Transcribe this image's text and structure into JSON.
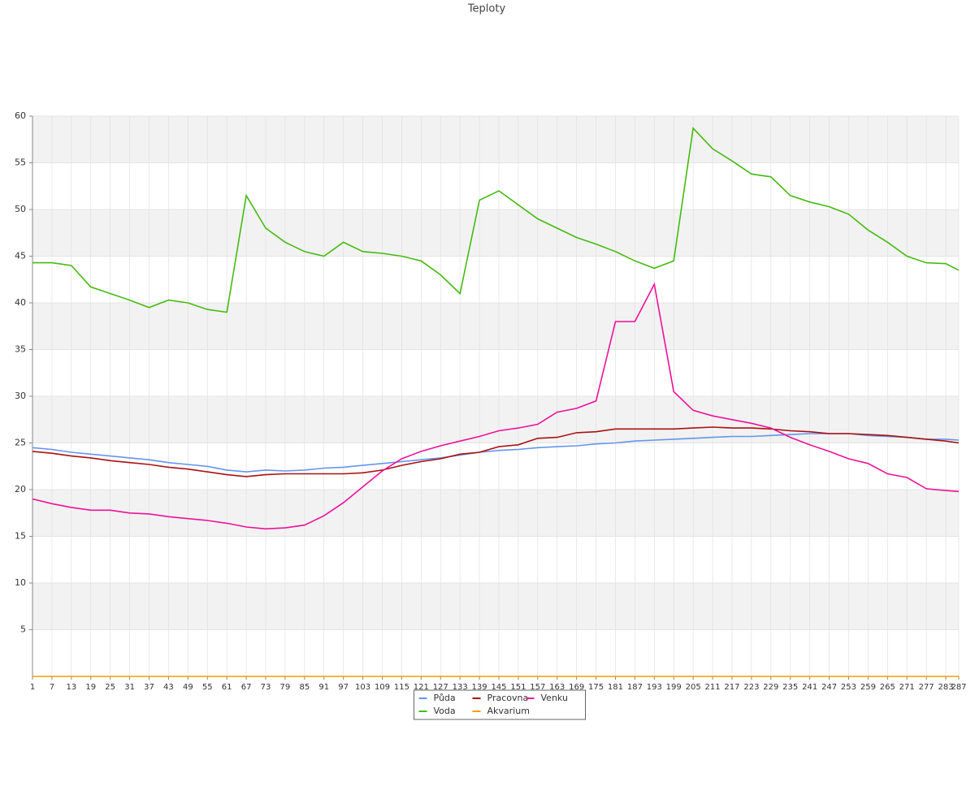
{
  "chart_data": {
    "type": "line",
    "title": "Teploty",
    "x": [
      1,
      7,
      13,
      19,
      25,
      31,
      37,
      43,
      49,
      55,
      61,
      67,
      73,
      79,
      85,
      91,
      97,
      103,
      109,
      115,
      121,
      127,
      133,
      139,
      145,
      151,
      157,
      163,
      169,
      175,
      181,
      187,
      193,
      199,
      205,
      211,
      217,
      223,
      229,
      235,
      241,
      247,
      253,
      259,
      265,
      271,
      277,
      283,
      287
    ],
    "xlim": [
      1,
      287
    ],
    "xticks": [
      1,
      7,
      13,
      19,
      25,
      31,
      37,
      43,
      49,
      55,
      61,
      67,
      73,
      79,
      85,
      91,
      97,
      103,
      109,
      115,
      121,
      127,
      133,
      139,
      145,
      151,
      157,
      163,
      169,
      175,
      181,
      187,
      193,
      199,
      205,
      211,
      217,
      223,
      229,
      235,
      241,
      247,
      253,
      259,
      265,
      271,
      277,
      283,
      287
    ],
    "ylim": [
      0,
      60
    ],
    "yticks": [
      5,
      10,
      15,
      20,
      25,
      30,
      35,
      40,
      45,
      50,
      55,
      60
    ],
    "grid": true,
    "legend": "bottom",
    "series": [
      {
        "name": "Půda",
        "color": "#6495ed",
        "values": [
          24.5,
          24.3,
          24.0,
          23.8,
          23.6,
          23.4,
          23.2,
          22.9,
          22.7,
          22.5,
          22.1,
          21.9,
          22.1,
          22.0,
          22.1,
          22.3,
          22.4,
          22.6,
          22.8,
          23.0,
          23.2,
          23.4,
          23.7,
          24.0,
          24.2,
          24.3,
          24.5,
          24.6,
          24.7,
          24.9,
          25.0,
          25.2,
          25.3,
          25.4,
          25.5,
          25.6,
          25.7,
          25.7,
          25.8,
          25.9,
          26.0,
          26.0,
          26.0,
          25.8,
          25.7,
          25.6,
          25.4,
          25.4,
          25.3
        ]
      },
      {
        "name": "Voda",
        "color": "#44bb11",
        "values": [
          44.3,
          44.3,
          44.0,
          41.7,
          41.0,
          40.3,
          39.5,
          40.3,
          40.0,
          39.3,
          39.0,
          51.5,
          48.0,
          46.5,
          45.5,
          45.0,
          46.5,
          45.5,
          45.3,
          45.0,
          44.5,
          43.0,
          41.0,
          51.0,
          52.0,
          50.5,
          49.0,
          48.0,
          47.0,
          46.3,
          45.5,
          44.5,
          43.7,
          44.5,
          58.7,
          56.5,
          55.2,
          53.8,
          53.5,
          51.5,
          50.8,
          50.3,
          49.5,
          47.8,
          46.5,
          45.0,
          44.3,
          44.2,
          43.5
        ]
      },
      {
        "name": "Pracovna",
        "color": "#aa1111",
        "values": [
          24.1,
          23.9,
          23.6,
          23.4,
          23.1,
          22.9,
          22.7,
          22.4,
          22.2,
          21.9,
          21.6,
          21.4,
          21.6,
          21.7,
          21.7,
          21.7,
          21.7,
          21.8,
          22.1,
          22.6,
          23.0,
          23.3,
          23.8,
          24.0,
          24.6,
          24.8,
          25.5,
          25.6,
          26.1,
          26.2,
          26.5,
          26.5,
          26.5,
          26.5,
          26.6,
          26.7,
          26.6,
          26.6,
          26.5,
          26.3,
          26.2,
          26.0,
          26.0,
          25.9,
          25.8,
          25.6,
          25.4,
          25.2,
          25.0
        ]
      },
      {
        "name": "Akvarium",
        "color": "#eea000",
        "values": [
          0,
          0,
          0,
          0,
          0,
          0,
          0,
          0,
          0,
          0,
          0,
          0,
          0,
          0,
          0,
          0,
          0,
          0,
          0,
          0,
          0,
          0,
          0,
          0,
          0,
          0,
          0,
          0,
          0,
          0,
          0,
          0,
          0,
          0,
          0,
          0,
          0,
          0,
          0,
          0,
          0,
          0,
          0,
          0,
          0,
          0,
          0,
          0,
          0
        ]
      },
      {
        "name": "Venku",
        "color": "#ee1199",
        "values": [
          19.0,
          18.5,
          18.1,
          17.8,
          17.8,
          17.5,
          17.4,
          17.1,
          16.9,
          16.7,
          16.4,
          16.0,
          15.8,
          15.9,
          16.2,
          17.2,
          18.6,
          20.3,
          22.0,
          23.3,
          24.1,
          24.7,
          25.2,
          25.7,
          26.3,
          26.6,
          27.0,
          28.3,
          28.7,
          29.5,
          38.0,
          38.0,
          42.0,
          30.5,
          28.5,
          27.9,
          27.5,
          27.1,
          26.6,
          25.6,
          24.8,
          24.1,
          23.3,
          22.8,
          21.7,
          21.3,
          20.1,
          19.9,
          19.8
        ]
      }
    ]
  }
}
